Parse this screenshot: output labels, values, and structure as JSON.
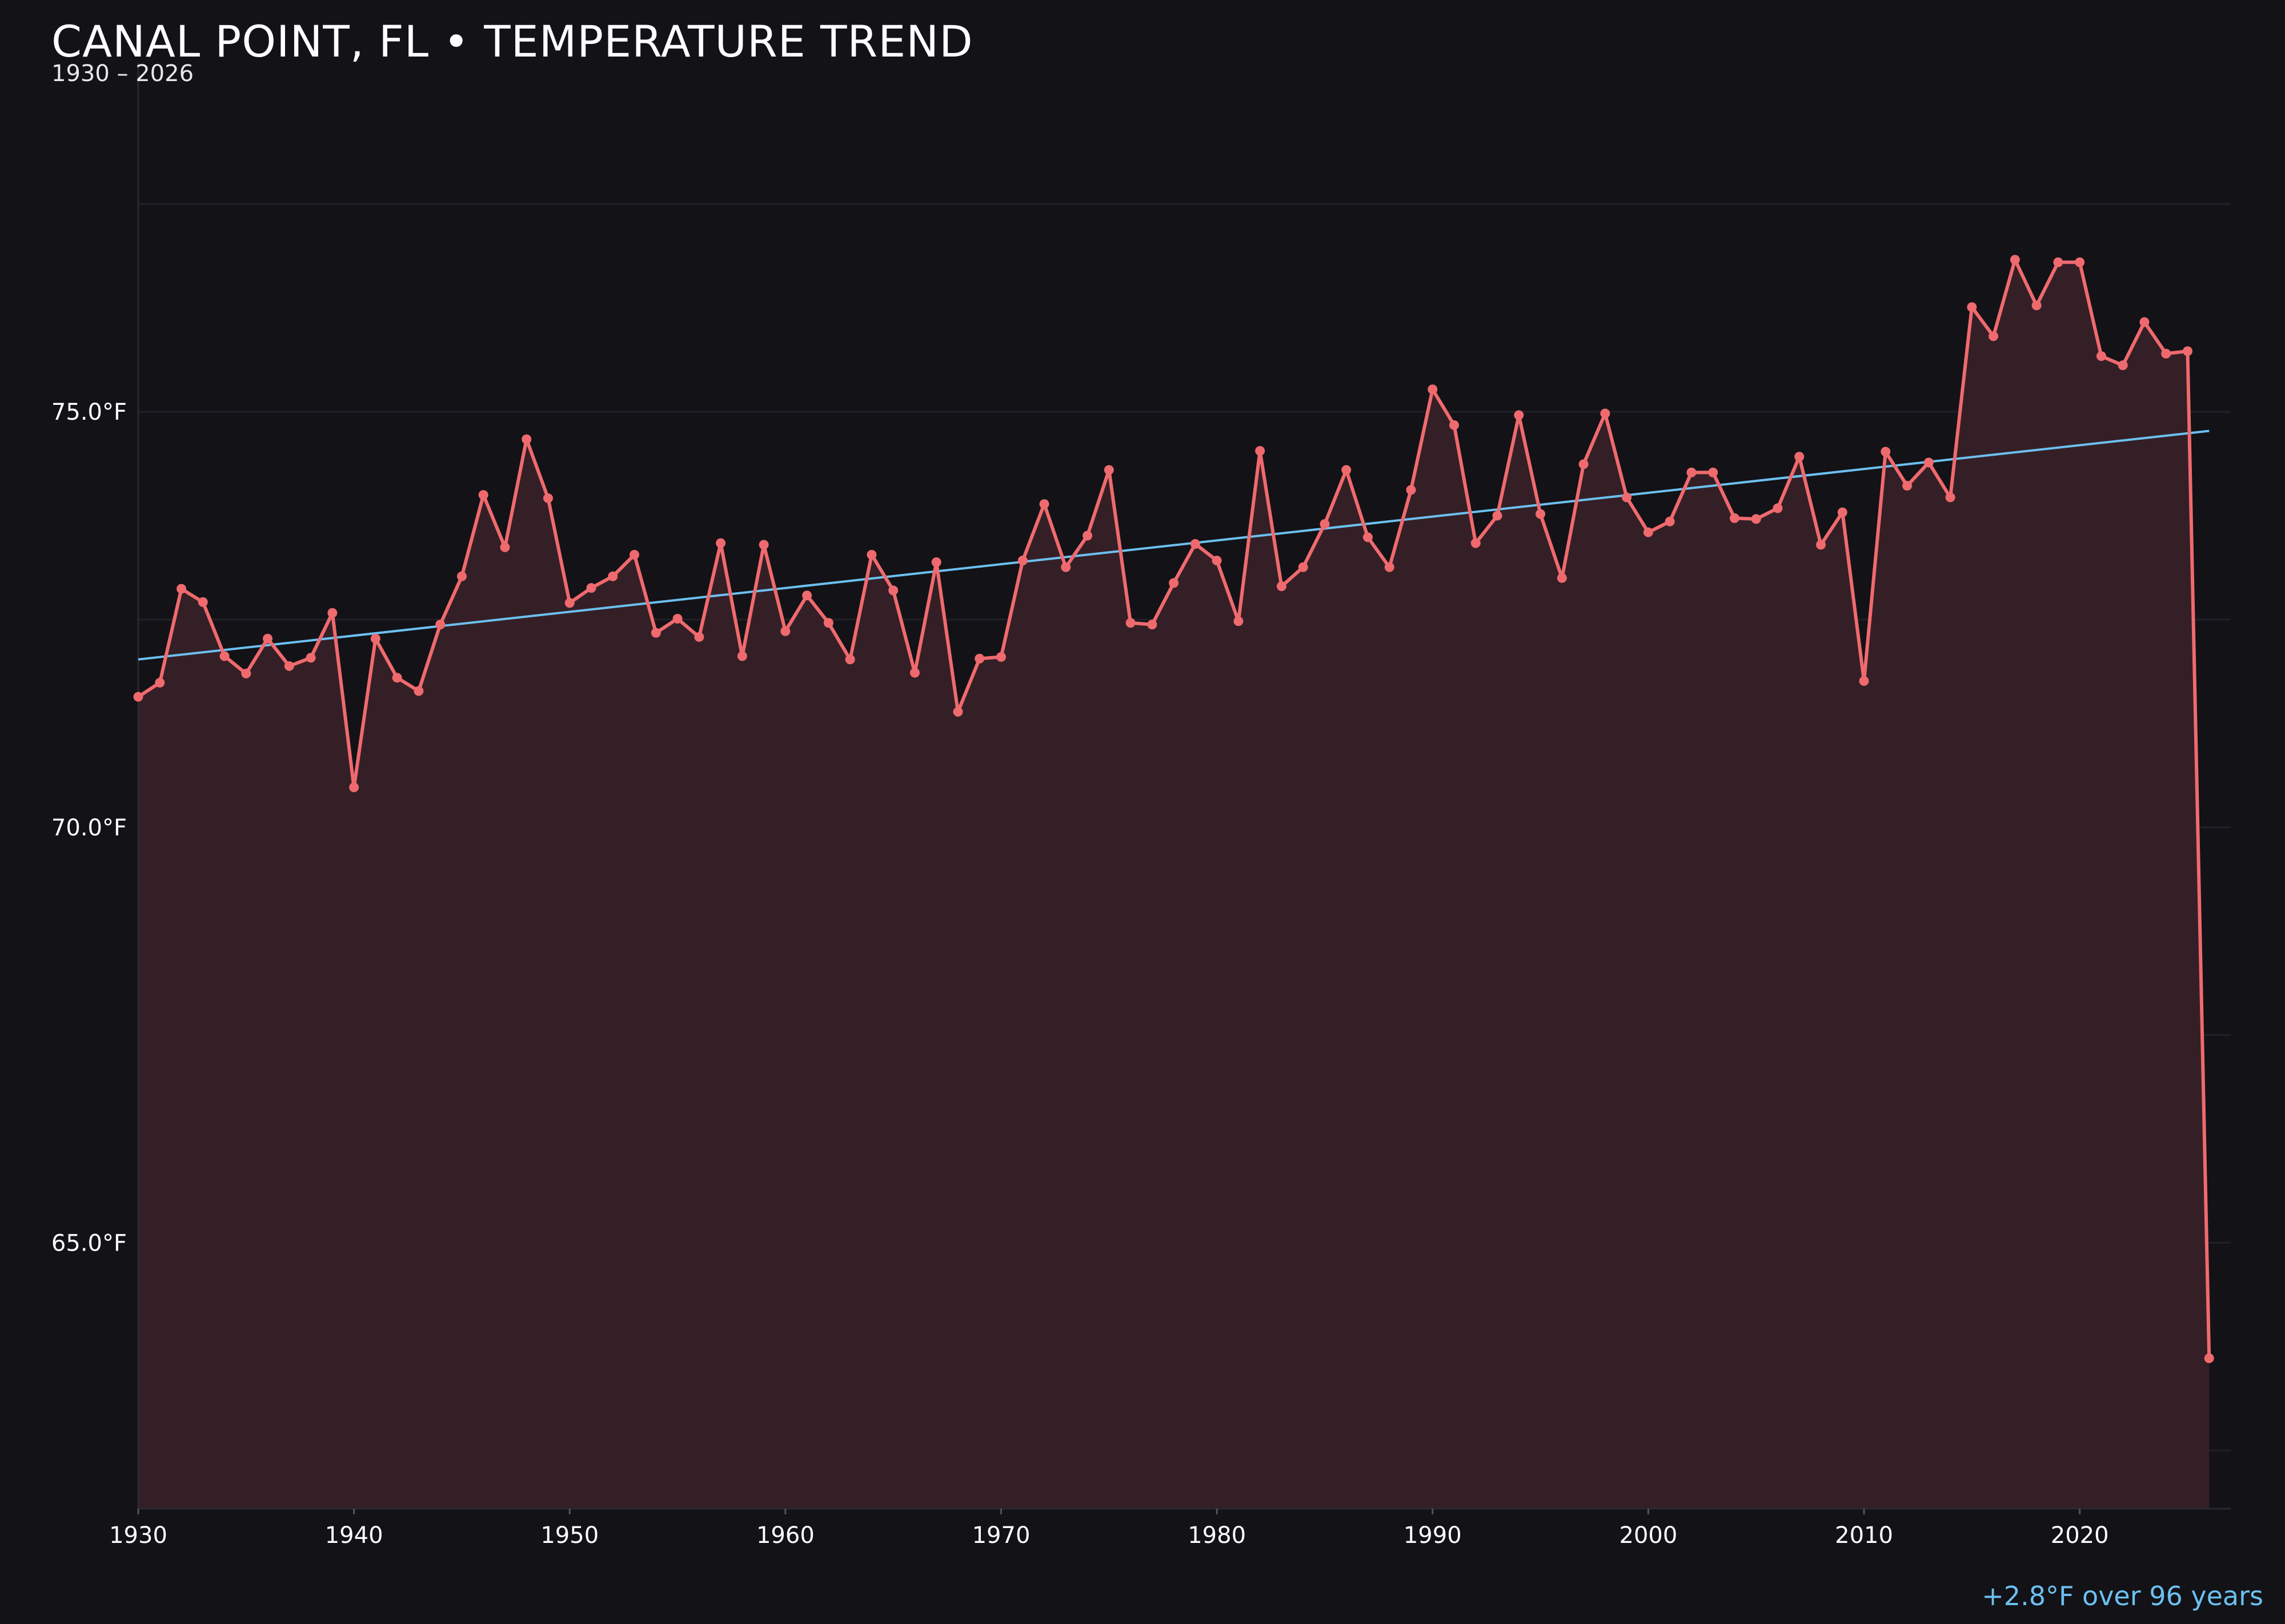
{
  "chart_data": {
    "type": "line",
    "title": "CANAL POINT, FL • TEMPERATURE TREND",
    "subtitle": "1930 – 2026",
    "xlabel": "",
    "ylabel": "",
    "x": [
      1930,
      1931,
      1932,
      1933,
      1934,
      1935,
      1936,
      1937,
      1938,
      1939,
      1940,
      1941,
      1942,
      1943,
      1944,
      1945,
      1946,
      1947,
      1948,
      1949,
      1950,
      1951,
      1952,
      1953,
      1954,
      1955,
      1956,
      1957,
      1958,
      1959,
      1960,
      1961,
      1962,
      1963,
      1964,
      1965,
      1966,
      1967,
      1968,
      1969,
      1970,
      1971,
      1972,
      1973,
      1974,
      1975,
      1976,
      1977,
      1978,
      1979,
      1980,
      1981,
      1982,
      1983,
      1984,
      1985,
      1986,
      1987,
      1988,
      1989,
      1990,
      1991,
      1992,
      1993,
      1994,
      1995,
      1996,
      1997,
      1998,
      1999,
      2000,
      2001,
      2002,
      2003,
      2004,
      2005,
      2006,
      2007,
      2008,
      2009,
      2010,
      2011,
      2012,
      2013,
      2014,
      2015,
      2016,
      2017,
      2018,
      2019,
      2020,
      2021,
      2022,
      2023,
      2024,
      2025,
      2026
    ],
    "series": [
      {
        "values": [
          71.57,
          71.74,
          72.87,
          72.71,
          72.06,
          71.85,
          72.27,
          71.94,
          72.04,
          72.58,
          70.48,
          72.27,
          71.8,
          71.64,
          72.44,
          73.02,
          74.0,
          73.37,
          74.67,
          73.96,
          72.7,
          72.88,
          73.02,
          73.28,
          72.34,
          72.51,
          72.29,
          73.42,
          72.06,
          73.4,
          72.36,
          72.79,
          72.46,
          72.02,
          73.28,
          72.85,
          71.86,
          73.19,
          71.39,
          72.03,
          72.05,
          73.21,
          73.89,
          73.13,
          73.51,
          74.3,
          72.46,
          72.44,
          72.94,
          73.41,
          73.21,
          72.48,
          74.53,
          72.9,
          73.13,
          73.65,
          74.3,
          73.49,
          73.13,
          74.06,
          75.27,
          74.84,
          73.42,
          73.75,
          74.96,
          73.77,
          73.0,
          74.37,
          74.98,
          73.97,
          73.55,
          73.68,
          74.27,
          74.27,
          73.72,
          73.71,
          73.84,
          74.46,
          73.4,
          73.79,
          71.76,
          74.52,
          74.11,
          74.39,
          73.97,
          76.26,
          75.91,
          76.83,
          76.28,
          76.8,
          76.8,
          75.67,
          75.56,
          76.08,
          75.7,
          75.73,
          63.61
        ]
      }
    ],
    "trend": {
      "start_year": 1930,
      "start_value": 72.02,
      "end_year": 2026,
      "end_value": 74.77
    },
    "ylim": [
      61.8,
      79.2
    ],
    "xlim": [
      1930,
      2027
    ],
    "xticks": [
      1930,
      1940,
      1950,
      1960,
      1970,
      1980,
      1990,
      2000,
      2010,
      2020
    ],
    "xtick_labels": [
      "1930",
      "1940",
      "1950",
      "1960",
      "1970",
      "1980",
      "1990",
      "2000",
      "2010",
      "2020"
    ],
    "yticks": [
      65.0,
      70.0,
      75.0
    ],
    "ytick_labels": [
      "65.0°F",
      "70.0°F",
      "75.0°F"
    ],
    "annotation": "+2.8°F over 96 years",
    "grid": true,
    "legend": "none",
    "colors": {
      "background": "#131217",
      "line": "#ef6a6e",
      "fill": "#351f26",
      "trend": "#6cc0f0",
      "grid": "#222027",
      "axis_text": "#ffffff"
    }
  }
}
